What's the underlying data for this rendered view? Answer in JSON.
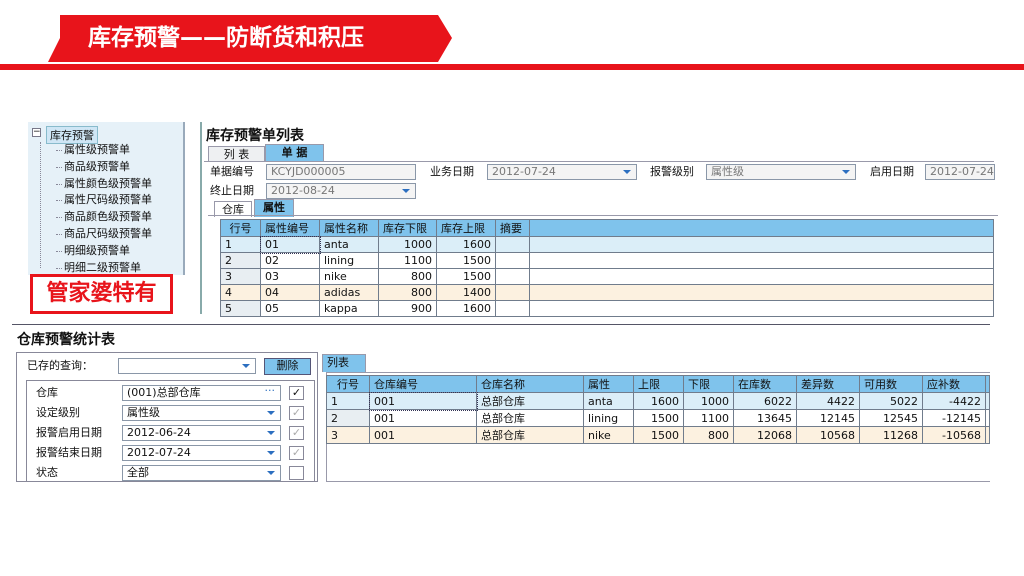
{
  "slide": {
    "title": "库存预警——防断货和积压",
    "badge": "管家婆特有"
  },
  "tree": {
    "root": "库存预警",
    "items": [
      "属性级预警单",
      "商品级预警单",
      "属性颜色级预警单",
      "属性尺码级预警单",
      "商品颜色级预警单",
      "商品尺码级预警单",
      "明细级预警单",
      "明细二级预警单"
    ]
  },
  "alert_list": {
    "title": "库存预警单列表",
    "tabs": [
      "列 表",
      "单 据"
    ],
    "form": {
      "doc_no_label": "单据编号",
      "doc_no": "KCYJD000005",
      "biz_date_label": "业务日期",
      "biz_date": "2012-07-24",
      "level_label": "报警级别",
      "level": "属性级",
      "start_date_label": "启用日期",
      "start_date": "2012-07-24",
      "end_date_label": "终止日期",
      "end_date": "2012-08-24"
    },
    "subtabs": [
      "仓库",
      "属性"
    ],
    "columns": [
      "行号",
      "属性编号",
      "属性名称",
      "库存下限",
      "库存上限",
      "摘要",
      ""
    ],
    "rows": [
      [
        "1",
        "01",
        "anta",
        "1000",
        "1600",
        "",
        ""
      ],
      [
        "2",
        "02",
        "lining",
        "1100",
        "1500",
        "",
        ""
      ],
      [
        "3",
        "03",
        "nike",
        "800",
        "1500",
        "",
        ""
      ],
      [
        "4",
        "04",
        "adidas",
        "800",
        "1400",
        "",
        ""
      ],
      [
        "5",
        "05",
        "kappa",
        "900",
        "1600",
        "",
        ""
      ]
    ]
  },
  "stats": {
    "title": "仓库预警统计表",
    "saved_query_label": "已存的查询：",
    "saved_query": "",
    "delete_label": "删除",
    "filters": [
      {
        "label": "仓库",
        "value": "(001)总部仓库",
        "control": "ellipsis",
        "checked": true,
        "enabled": true
      },
      {
        "label": "设定级别",
        "value": "属性级",
        "control": "dropdown",
        "checked": true,
        "enabled": false
      },
      {
        "label": "报警启用日期",
        "value": "2012-06-24",
        "control": "dropdown",
        "checked": true,
        "enabled": false
      },
      {
        "label": "报警结束日期",
        "value": "2012-07-24",
        "control": "dropdown",
        "checked": true,
        "enabled": false
      },
      {
        "label": "状态",
        "value": "全部",
        "control": "dropdown",
        "checked": false,
        "enabled": true
      }
    ],
    "tab": "列表",
    "columns": [
      "行号",
      "仓库编号",
      "仓库名称",
      "属性",
      "上限",
      "下限",
      "在库数",
      "差异数",
      "可用数",
      "应补数",
      ""
    ],
    "rows": [
      [
        "1",
        "001",
        "总部仓库",
        "anta",
        "1600",
        "1000",
        "6022",
        "4422",
        "5022",
        "-4422",
        ""
      ],
      [
        "2",
        "001",
        "总部仓库",
        "lining",
        "1500",
        "1100",
        "13645",
        "12145",
        "12545",
        "-12145",
        ""
      ],
      [
        "3",
        "001",
        "总部仓库",
        "nike",
        "1500",
        "800",
        "12068",
        "10568",
        "11268",
        "-10568",
        ""
      ]
    ]
  },
  "colors": {
    "accent_red": "#e8141b",
    "grid_header": "#7fc3ec",
    "selected_row": "#dbeef8",
    "highlight_row": "#fcf1e0"
  }
}
